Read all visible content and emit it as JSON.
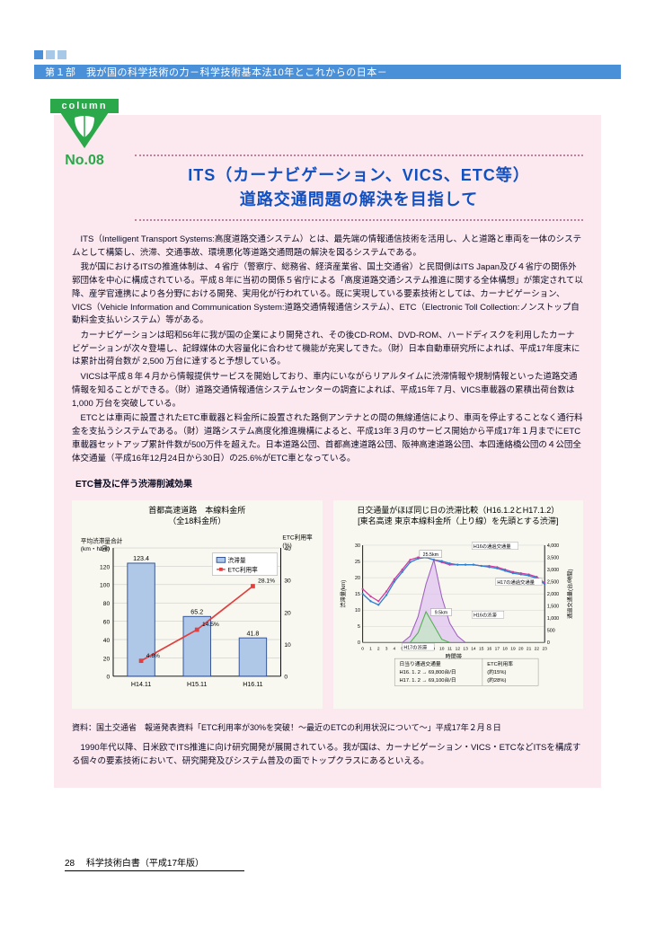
{
  "header": {
    "text": "第１部　我が国の科学技術の力－科学技術基本法10年とこれからの日本－"
  },
  "column": {
    "label": "column",
    "number": "No.08",
    "badge_color": "#2ba84a"
  },
  "title": {
    "line1": "ITS（カーナビゲーション、VICS、ETC等）",
    "line2": "道路交通問題の解決を目指して"
  },
  "paragraphs": [
    "ITS（Intelligent Transport Systems:高度道路交通システム）とは、最先端の情報通信技術を活用し、人と道路と車両を一体のシステムとして構築し、渋滞、交通事故、環境悪化等道路交通問題の解決を図るシステムである。",
    "我が国におけるITSの推進体制は、４省庁（警察庁、総務省、経済産業省、国土交通省）と民間側はITS Japan及び４省庁の関係外郭団体を中心に構成されている。平成８年に当初の関係５省庁による「高度道路交通システム推進に関する全体構想」が策定されて以降、産学官連携により各分野における開発、実用化が行われている。既に実現している要素技術としては、カーナビゲーション、VICS（Vehicle Information and Communication System:道路交通情報通信システム）、ETC（Electronic Toll Collection:ノンストップ自動料金支払いシステム）等がある。",
    "カーナビゲーションは昭和56年に我が国の企業により開発され、その後CD-ROM、DVD-ROM、ハードディスクを利用したカーナビゲーションが次々登場し、記録媒体の大容量化に合わせて機能が充実してきた。（財）日本自動車研究所によれば、平成17年度末には累計出荷台数が 2,500 万台に達すると予想している。",
    "VICSは平成８年４月から情報提供サービスを開始しており、車内にいながらリアルタイムに渋滞情報や規制情報といった道路交通情報を知ることができる。（財）道路交通情報通信システムセンターの調査によれば、平成15年７月、VICS車載器の累積出荷台数は1,000 万台を突破している。",
    "ETCとは車両に設置されたETC車載器と料金所に設置された路側アンテナとの間の無線通信により、車両を停止することなく通行料金を支払うシステムである。（財）道路システム高度化推進機構によると、平成13年３月のサービス開始から平成17年１月までにETC車載器セットアップ累計件数が500万件を超えた。日本道路公団、首都高速道路公団、阪神高速道路公団、本四連絡橋公団の４公団全体交通量（平成16年12月24日から30日）の25.6%がETC車となっている。"
  ],
  "chart_section_title": "ETC普及に伴う渋滞削減効果",
  "left_chart": {
    "type": "bar_line_combo",
    "title_line1": "首都高速道路　本線料金所",
    "title_line2": "（全18料金所）",
    "y_left_label": "平均渋滞量合計\\n(km・h/日)",
    "y_right_label": "ETC利用率\\n(%)",
    "categories": [
      "H14.11",
      "H15.11",
      "H16.11"
    ],
    "bar_values": [
      123.4,
      65.2,
      41.8
    ],
    "bar_labels": [
      "123.4",
      "65.2",
      "41.8"
    ],
    "line_values": [
      4.8,
      14.5,
      28.1
    ],
    "line_labels": [
      "4.8%",
      "14.5%",
      "28.1%"
    ],
    "y_left_max": 140,
    "y_left_ticks": [
      0,
      20,
      40,
      60,
      80,
      100,
      120,
      140
    ],
    "y_right_max": 40,
    "y_right_ticks": [
      0,
      10,
      20,
      30,
      40
    ],
    "bar_color": "#b0c8e8",
    "bar_border": "#305090",
    "line_color": "#e04040",
    "legend_bar": "渋滞量",
    "legend_line": "ETC利用率",
    "background": "#f8f8f0",
    "grid_color": "#c0c0c0"
  },
  "right_chart": {
    "type": "line",
    "title_line1": "日交通量がほぼ同じ日の渋滞比較（H16.1.2とH17.1.2）",
    "title_line2": "[東名高速 東京本線料金所（上り線）を先頭とする渋滞]",
    "x_label": "時間帯",
    "y_left_label": "渋滞量(km)",
    "y_right_label": "通過交通量(台/時間)",
    "x_ticks": [
      0,
      1,
      2,
      3,
      4,
      5,
      6,
      7,
      8,
      9,
      10,
      11,
      12,
      13,
      14,
      15,
      16,
      17,
      18,
      19,
      20,
      21,
      22,
      23
    ],
    "y_left_max": 30,
    "y_left_ticks": [
      0,
      5,
      10,
      15,
      20,
      25,
      30
    ],
    "y_right_max": 4000,
    "y_right_ticks": [
      0,
      500,
      1000,
      1500,
      2000,
      2500,
      3000,
      3500,
      4000
    ],
    "series": {
      "h16_traffic": {
        "label": "H16の通過交通量",
        "color": "#d040a0",
        "points": [
          2200,
          1900,
          1700,
          2100,
          2600,
          3000,
          3400,
          3500,
          3500,
          3400,
          3300,
          3200,
          3200,
          3200,
          3200,
          3150,
          3150,
          3100,
          3000,
          2900,
          2850,
          2800,
          2700,
          2450
        ]
      },
      "h17_traffic": {
        "label": "H17の通過交通量",
        "color": "#3080d0",
        "points": [
          2000,
          1700,
          1550,
          1950,
          2500,
          2900,
          3300,
          3450,
          3500,
          3400,
          3350,
          3250,
          3200,
          3200,
          3200,
          3150,
          3100,
          3050,
          2950,
          2850,
          2800,
          2750,
          2650,
          2400
        ]
      },
      "h16_jam": {
        "label": "H16の渋滞",
        "color": "#a060c0",
        "fill": "#e0c0f0",
        "points": [
          0,
          0,
          0,
          0,
          0,
          0,
          2,
          8,
          18,
          25.5,
          14,
          6,
          2,
          0,
          0,
          0,
          0,
          0,
          0,
          0,
          0,
          0,
          0,
          0
        ]
      },
      "h17_jam": {
        "label": "H17の渋滞",
        "color": "#50b050",
        "fill": "#c0e8c0",
        "points": [
          0,
          0,
          0,
          0,
          0,
          0,
          0,
          3,
          9.5,
          5.3,
          1,
          0,
          0,
          0,
          0,
          0,
          0,
          0,
          0,
          0,
          0,
          0,
          0,
          0
        ]
      }
    },
    "annotations": {
      "h16_peak": "25.5km",
      "h17_peak": "9.5km"
    },
    "footer_box": {
      "left_l1": "日当り通過交通量",
      "left_l2": "H16. 1. 2 → 69,800台/日",
      "left_l3": "H17. 1. 2 → 69,100台/日",
      "right_l1": "ETC利用率",
      "right_l2": "(約15%)",
      "right_l3": "(約28%)"
    },
    "background": "#f8f8f0"
  },
  "source": "資料：国土交通省　報道発表資料「ETC利用率が30%を突破！～最近のETCの利用状況について～」平成17年２月８日",
  "closing": "1990年代以降、日米欧でITS推進に向け研究開発が展開されている。我が国は、カーナビゲーション・VICS・ETCなどITSを構成する個々の要素技術において、研究開発及びシステム普及の面でトップクラスにあるといえる。",
  "footer": {
    "page": "28",
    "doc": "科学技術白書（平成17年版）"
  },
  "colors": {
    "header_blue": "#4a90d9",
    "box_pink": "#fce8ef",
    "title_blue": "#1050c0",
    "dotted_border": "#c080a0"
  }
}
